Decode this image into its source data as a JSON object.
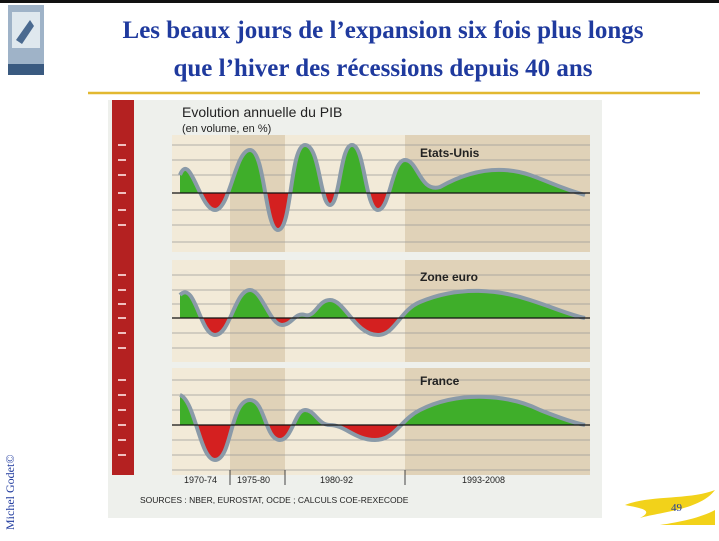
{
  "slide": {
    "title_lines": [
      "Les beaux jours de l’expansion six fois plus longs",
      "que l’hiver des récessions depuis 40 ans"
    ],
    "figure": {
      "title": "Evolution annuelle du PIB",
      "subtitle": "(en volume, en %)",
      "panels": [
        "Etats-Unis",
        "Zone euro",
        "France"
      ],
      "periods": [
        "1970-74",
        "1975-80",
        "1980-92",
        "1993-2008"
      ],
      "source": "SOURCES : NBER, EUROSTAT, OCDE ; CALCULS COE-REXECODE"
    },
    "author": "Michel Godet©",
    "page_number": "49"
  }
}
